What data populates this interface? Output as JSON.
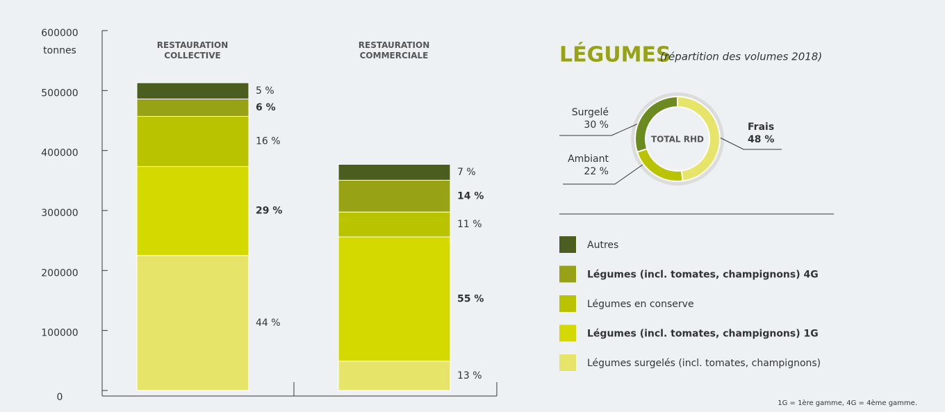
{
  "chart_data": [
    {
      "type": "stacked_bar",
      "y_label": "tonnes",
      "categories": [
        "RESTAURATION COLLECTIVE",
        "RESTAURATION COMMERCIALE"
      ],
      "ylim": [
        0,
        600000
      ],
      "yticks": [
        0,
        100000,
        200000,
        300000,
        400000,
        500000,
        600000
      ],
      "series": [
        {
          "name": "Légumes surgelés (incl. tomates, champignons)",
          "color": "#e6e56a",
          "bold": false,
          "values": [
            225000,
            49000
          ],
          "percent_labels": [
            "44 %",
            "13 %"
          ]
        },
        {
          "name": "Légumes (incl. tomates, champignons) 1G",
          "color": "#d4d900",
          "bold": true,
          "values": [
            148500,
            207000
          ],
          "percent_labels": [
            "29 %",
            "55 %"
          ]
        },
        {
          "name": "Légumes en conserve",
          "color": "#b9c300",
          "bold": false,
          "values": [
            83500,
            41500
          ],
          "percent_labels": [
            "16 %",
            "11 %"
          ]
        },
        {
          "name": "Légumes (incl. tomates, champignons) 4G",
          "color": "#97a314",
          "bold": true,
          "values": [
            29000,
            53000
          ],
          "percent_labels": [
            "6 %",
            "14 %"
          ]
        },
        {
          "name": "Autres",
          "color": "#4b5e1f",
          "bold": false,
          "values": [
            27000,
            26500
          ],
          "percent_labels": [
            "5 %",
            "7 %"
          ]
        }
      ],
      "footnote": "1G = 1ère gamme, 4G = 4ème gamme."
    },
    {
      "type": "donut",
      "title": "LÉGUMES",
      "subtitle": "(répartition des volumes 2018)",
      "center_label": "TOTAL RHD",
      "categories": [
        "Frais",
        "Ambiant",
        "Surgelé"
      ],
      "values": [
        48,
        22,
        30
      ],
      "value_labels": [
        "48 %",
        "22 %",
        "30 %"
      ],
      "colors": [
        "#e6e56a",
        "#b9c300",
        "#6b8a1f"
      ]
    }
  ]
}
